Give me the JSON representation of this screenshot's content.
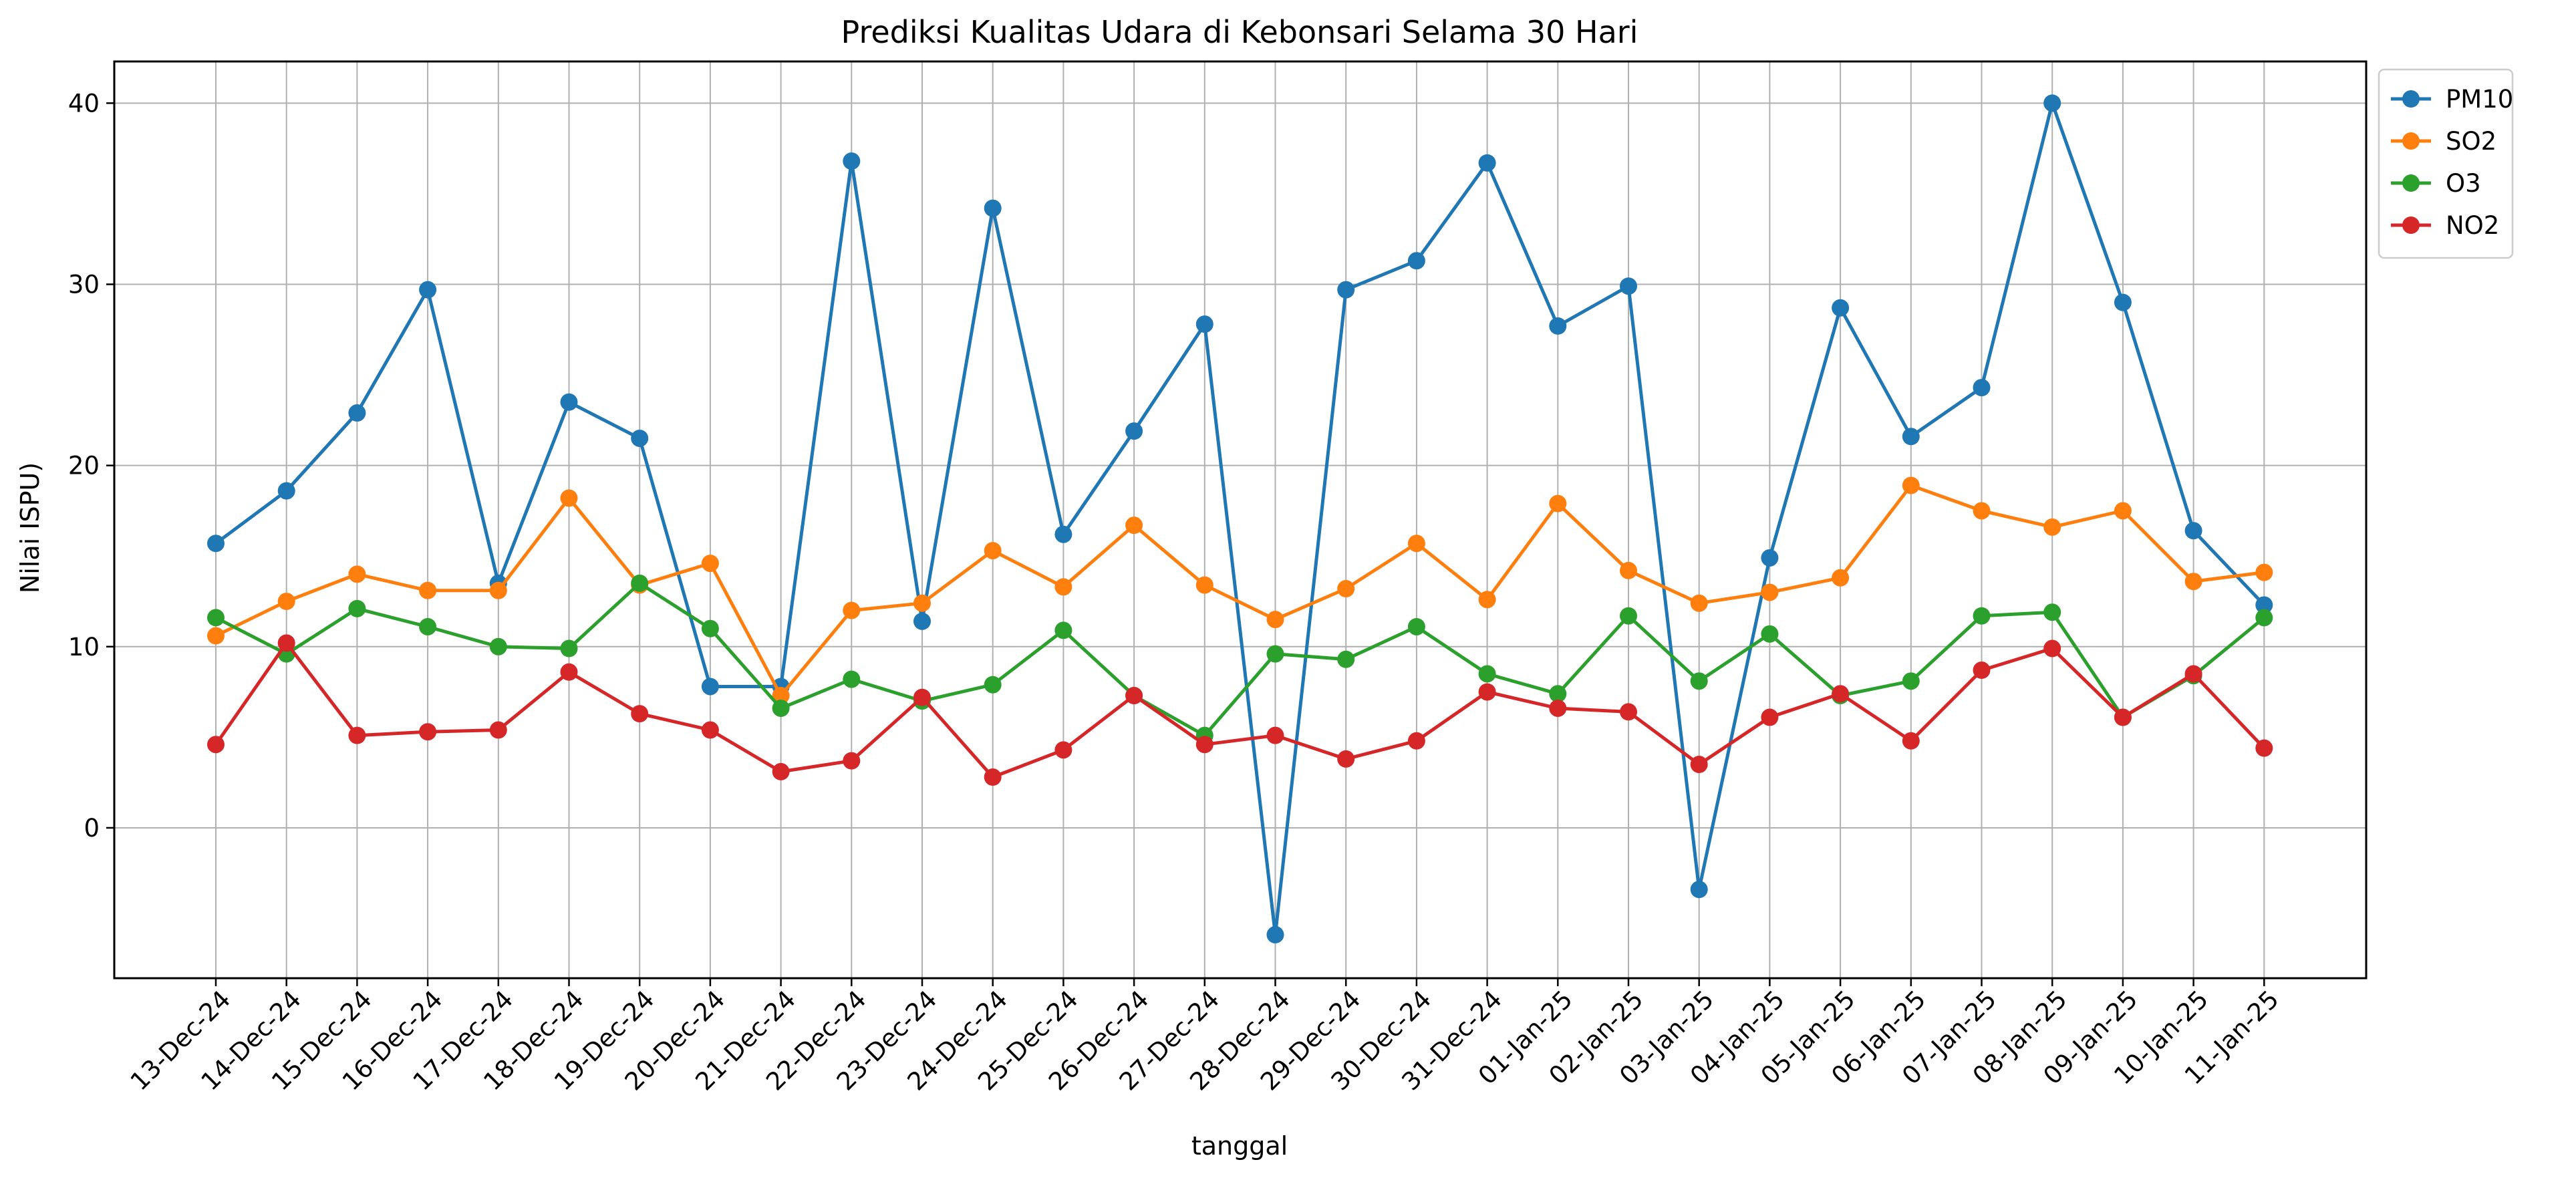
{
  "chart_data": {
    "type": "line",
    "title": "Prediksi Kualitas Udara di Kebonsari Selama 30 Hari",
    "xlabel": "tanggal",
    "ylabel": "Nilai ISPU)",
    "ylim": [
      -8.3,
      42.3
    ],
    "yticks": [
      0,
      10,
      20,
      30,
      40
    ],
    "grid": true,
    "legend_position": "outside top-right",
    "categories": [
      "13-Dec-24",
      "14-Dec-24",
      "15-Dec-24",
      "16-Dec-24",
      "17-Dec-24",
      "18-Dec-24",
      "19-Dec-24",
      "20-Dec-24",
      "21-Dec-24",
      "22-Dec-24",
      "23-Dec-24",
      "24-Dec-24",
      "25-Dec-24",
      "26-Dec-24",
      "27-Dec-24",
      "28-Dec-24",
      "29-Dec-24",
      "30-Dec-24",
      "31-Dec-24",
      "01-Jan-25",
      "02-Jan-25",
      "03-Jan-25",
      "04-Jan-25",
      "05-Jan-25",
      "06-Jan-25",
      "07-Jan-25",
      "08-Jan-25",
      "09-Jan-25",
      "10-Jan-25",
      "11-Jan-25"
    ],
    "series": [
      {
        "name": "PM10",
        "color": "#1f77b4",
        "values": [
          15.7,
          18.6,
          22.9,
          29.7,
          13.5,
          23.5,
          21.5,
          7.8,
          7.8,
          36.8,
          11.4,
          34.2,
          16.2,
          21.9,
          27.8,
          -5.9,
          29.7,
          31.3,
          36.7,
          27.7,
          29.9,
          -3.4,
          14.9,
          28.7,
          21.6,
          24.3,
          40.0,
          29.0,
          16.4,
          12.3
        ]
      },
      {
        "name": "SO2",
        "color": "#ff7f0e",
        "values": [
          10.6,
          12.5,
          14.0,
          13.1,
          13.1,
          18.2,
          13.4,
          14.6,
          7.3,
          12.0,
          12.4,
          15.3,
          13.3,
          16.7,
          13.4,
          11.5,
          13.2,
          15.7,
          12.6,
          17.9,
          14.2,
          12.4,
          13.0,
          13.8,
          18.9,
          17.5,
          16.6,
          17.5,
          13.6,
          14.1
        ]
      },
      {
        "name": "O3",
        "color": "#2ca02c",
        "values": [
          11.6,
          9.6,
          12.1,
          11.1,
          10.0,
          9.9,
          13.5,
          11.0,
          6.6,
          8.2,
          7.0,
          7.9,
          10.9,
          7.3,
          5.1,
          9.6,
          9.3,
          11.1,
          8.5,
          7.4,
          11.7,
          8.1,
          10.7,
          7.3,
          8.1,
          11.7,
          11.9,
          6.1,
          8.4,
          11.6
        ]
      },
      {
        "name": "NO2",
        "color": "#d62728",
        "values": [
          4.6,
          10.2,
          5.1,
          5.3,
          5.4,
          8.6,
          6.3,
          5.4,
          3.1,
          3.7,
          7.2,
          2.8,
          4.3,
          7.3,
          4.6,
          5.1,
          3.8,
          4.8,
          7.5,
          6.6,
          6.4,
          3.5,
          6.1,
          7.4,
          4.8,
          8.7,
          9.9,
          6.1,
          8.5,
          4.4
        ]
      }
    ]
  }
}
